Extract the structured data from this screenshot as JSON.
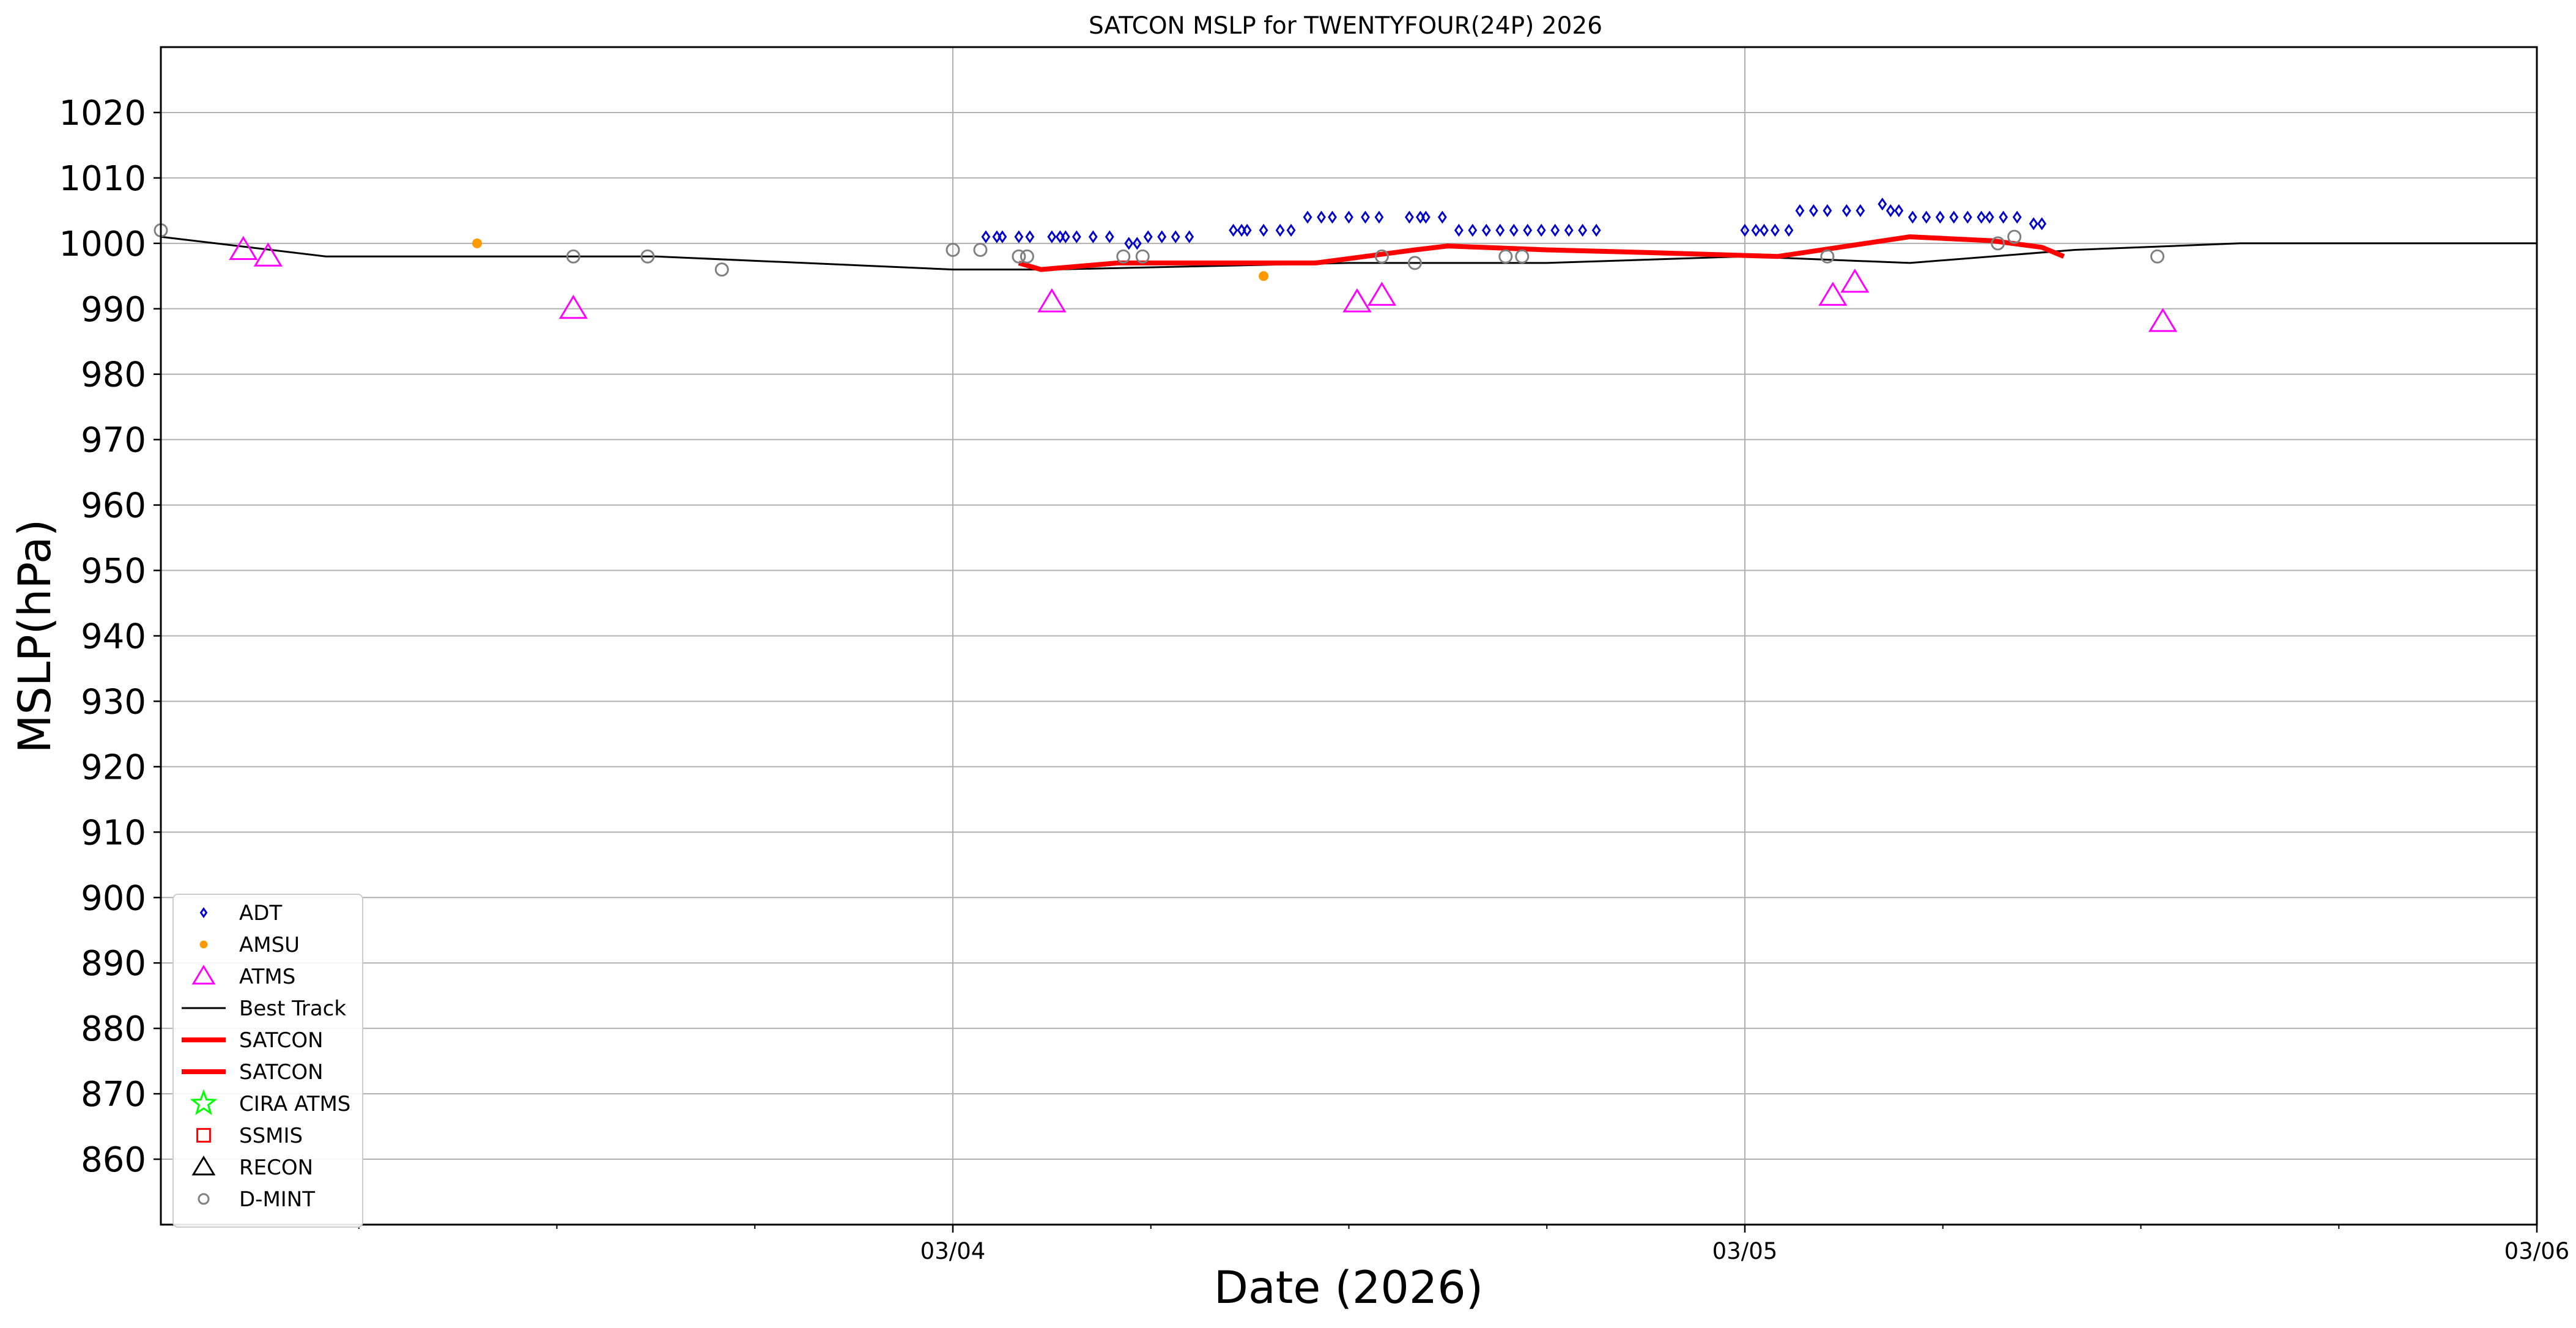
{
  "chart_data": {
    "type": "scatter",
    "title": "SATCON MSLP for TWENTYFOUR(24P) 2026",
    "xlabel": "Date (2026)",
    "ylabel": "MSLP(hPa)",
    "xlim": [
      "2026-03-03 00:00",
      "2026-03-06 00:00"
    ],
    "ylim": [
      850,
      1030
    ],
    "x_ticks": [
      "03/04",
      "03/05",
      "03/06"
    ],
    "y_ticks": [
      860,
      870,
      880,
      890,
      900,
      910,
      920,
      930,
      940,
      950,
      960,
      970,
      980,
      990,
      1000,
      1010,
      1020
    ],
    "grid": true,
    "legend_location": "lower left",
    "legend": [
      "ADT",
      "AMSU",
      "ATMS",
      "Best Track",
      "SATCON",
      "SATCON",
      "CIRA ATMS",
      "SSMIS",
      "RECON",
      "D-MINT"
    ],
    "series": [
      {
        "name": "ADT",
        "kind": "marker",
        "marker": "diamond",
        "color": "#0000cc",
        "points": [
          [
            "2026-03-04 01:00",
            1001
          ],
          [
            "2026-03-04 01:20",
            1001
          ],
          [
            "2026-03-04 01:30",
            1001
          ],
          [
            "2026-03-04 02:00",
            1001
          ],
          [
            "2026-03-04 02:20",
            1001
          ],
          [
            "2026-03-04 03:00",
            1001
          ],
          [
            "2026-03-04 03:15",
            1001
          ],
          [
            "2026-03-04 03:25",
            1001
          ],
          [
            "2026-03-04 03:45",
            1001
          ],
          [
            "2026-03-04 04:15",
            1001
          ],
          [
            "2026-03-04 04:45",
            1001
          ],
          [
            "2026-03-04 05:20",
            1000
          ],
          [
            "2026-03-04 05:35",
            1000
          ],
          [
            "2026-03-04 05:55",
            1001
          ],
          [
            "2026-03-04 06:20",
            1001
          ],
          [
            "2026-03-04 06:45",
            1001
          ],
          [
            "2026-03-04 07:10",
            1001
          ],
          [
            "2026-03-04 08:30",
            1002
          ],
          [
            "2026-03-04 08:45",
            1002
          ],
          [
            "2026-03-04 08:55",
            1002
          ],
          [
            "2026-03-04 09:25",
            1002
          ],
          [
            "2026-03-04 09:55",
            1002
          ],
          [
            "2026-03-04 10:15",
            1002
          ],
          [
            "2026-03-04 10:45",
            1004
          ],
          [
            "2026-03-04 11:10",
            1004
          ],
          [
            "2026-03-04 11:30",
            1004
          ],
          [
            "2026-03-04 12:00",
            1004
          ],
          [
            "2026-03-04 12:30",
            1004
          ],
          [
            "2026-03-04 12:55",
            1004
          ],
          [
            "2026-03-04 13:50",
            1004
          ],
          [
            "2026-03-04 14:10",
            1004
          ],
          [
            "2026-03-04 14:20",
            1004
          ],
          [
            "2026-03-04 14:50",
            1004
          ],
          [
            "2026-03-04 15:20",
            1002
          ],
          [
            "2026-03-04 15:45",
            1002
          ],
          [
            "2026-03-04 16:10",
            1002
          ],
          [
            "2026-03-04 16:35",
            1002
          ],
          [
            "2026-03-04 17:00",
            1002
          ],
          [
            "2026-03-04 17:25",
            1002
          ],
          [
            "2026-03-04 17:50",
            1002
          ],
          [
            "2026-03-04 18:15",
            1002
          ],
          [
            "2026-03-04 18:40",
            1002
          ],
          [
            "2026-03-04 19:05",
            1002
          ],
          [
            "2026-03-04 19:30",
            1002
          ],
          [
            "2026-03-05 00:00",
            1002
          ],
          [
            "2026-03-05 00:20",
            1002
          ],
          [
            "2026-03-05 00:35",
            1002
          ],
          [
            "2026-03-05 00:55",
            1002
          ],
          [
            "2026-03-05 01:20",
            1002
          ],
          [
            "2026-03-05 01:40",
            1005
          ],
          [
            "2026-03-05 02:05",
            1005
          ],
          [
            "2026-03-05 02:30",
            1005
          ],
          [
            "2026-03-05 03:05",
            1005
          ],
          [
            "2026-03-05 03:30",
            1005
          ],
          [
            "2026-03-05 04:10",
            1006
          ],
          [
            "2026-03-05 04:25",
            1005
          ],
          [
            "2026-03-05 04:40",
            1005
          ],
          [
            "2026-03-05 05:05",
            1004
          ],
          [
            "2026-03-05 05:30",
            1004
          ],
          [
            "2026-03-05 05:55",
            1004
          ],
          [
            "2026-03-05 06:20",
            1004
          ],
          [
            "2026-03-05 06:45",
            1004
          ],
          [
            "2026-03-05 07:10",
            1004
          ],
          [
            "2026-03-05 07:25",
            1004
          ],
          [
            "2026-03-05 07:50",
            1004
          ],
          [
            "2026-03-05 08:15",
            1004
          ],
          [
            "2026-03-05 08:45",
            1003
          ],
          [
            "2026-03-05 09:00",
            1003
          ]
        ]
      },
      {
        "name": "AMSU",
        "kind": "marker",
        "marker": "dot",
        "color": "#ff9900",
        "points": [
          [
            "2026-03-03 09:35",
            1000
          ],
          [
            "2026-03-04 09:25",
            995
          ]
        ]
      },
      {
        "name": "ATMS",
        "kind": "marker",
        "marker": "triangle",
        "color": "#ff00ff",
        "points": [
          [
            "2026-03-03 02:30",
            999
          ],
          [
            "2026-03-03 03:15",
            998
          ],
          [
            "2026-03-03 12:30",
            990
          ],
          [
            "2026-03-04 03:00",
            991
          ],
          [
            "2026-03-04 12:15",
            991
          ],
          [
            "2026-03-04 13:00",
            992
          ],
          [
            "2026-03-05 02:40",
            992
          ],
          [
            "2026-03-05 03:20",
            994
          ],
          [
            "2026-03-05 12:40",
            988
          ]
        ]
      },
      {
        "name": "Best Track",
        "kind": "line",
        "color": "#000000",
        "points": [
          [
            "2026-03-03 00:00",
            1001
          ],
          [
            "2026-03-03 05:00",
            998
          ],
          [
            "2026-03-03 15:00",
            998
          ],
          [
            "2026-03-04 00:00",
            996
          ],
          [
            "2026-03-04 03:00",
            996
          ],
          [
            "2026-03-04 12:00",
            997
          ],
          [
            "2026-03-04 18:00",
            997
          ],
          [
            "2026-03-05 00:00",
            998
          ],
          [
            "2026-03-05 05:00",
            997
          ],
          [
            "2026-03-05 10:00",
            999
          ],
          [
            "2026-03-05 15:00",
            1000
          ],
          [
            "2026-03-06 00:00",
            1000
          ]
        ]
      },
      {
        "name": "SATCON",
        "kind": "line",
        "color": "#ff0000",
        "points": [
          [
            "2026-03-04 02:00",
            997
          ],
          [
            "2026-03-04 02:40",
            996
          ],
          [
            "2026-03-04 05:00",
            997
          ],
          [
            "2026-03-04 08:00",
            997
          ],
          [
            "2026-03-04 11:00",
            997
          ],
          [
            "2026-03-04 12:30",
            998
          ],
          [
            "2026-03-04 14:00",
            999
          ],
          [
            "2026-03-04 15:00",
            999.6
          ],
          [
            "2026-03-04 18:00",
            999
          ],
          [
            "2026-03-04 21:00",
            998.6
          ],
          [
            "2026-03-05 01:00",
            998
          ],
          [
            "2026-03-05 03:40",
            1000
          ],
          [
            "2026-03-05 05:00",
            1001
          ],
          [
            "2026-03-05 07:30",
            1000.4
          ],
          [
            "2026-03-05 09:00",
            999.4
          ],
          [
            "2026-03-05 09:40",
            998
          ]
        ]
      },
      {
        "name": "SATCON",
        "kind": "line",
        "color": "#ff0000",
        "points": []
      },
      {
        "name": "CIRA ATMS",
        "kind": "marker",
        "marker": "star",
        "color": "#00ff00",
        "points": []
      },
      {
        "name": "SSMIS",
        "kind": "marker",
        "marker": "square",
        "color": "#ff0000",
        "points": []
      },
      {
        "name": "RECON",
        "kind": "marker",
        "marker": "triangle",
        "color": "#000000",
        "points": []
      },
      {
        "name": "D-MINT",
        "kind": "marker",
        "marker": "circle",
        "color": "#808080",
        "points": [
          [
            "2026-03-03 00:00",
            1002
          ],
          [
            "2026-03-03 12:30",
            998
          ],
          [
            "2026-03-03 14:45",
            998
          ],
          [
            "2026-03-03 17:00",
            996
          ],
          [
            "2026-03-04 00:00",
            999
          ],
          [
            "2026-03-04 00:50",
            999
          ],
          [
            "2026-03-04 02:00",
            998
          ],
          [
            "2026-03-04 02:15",
            998
          ],
          [
            "2026-03-04 05:10",
            998
          ],
          [
            "2026-03-04 05:45",
            998
          ],
          [
            "2026-03-04 13:00",
            998
          ],
          [
            "2026-03-04 14:00",
            997
          ],
          [
            "2026-03-04 16:45",
            998
          ],
          [
            "2026-03-04 17:15",
            998
          ],
          [
            "2026-03-05 02:30",
            998
          ],
          [
            "2026-03-05 07:40",
            1000
          ],
          [
            "2026-03-05 08:10",
            1001
          ],
          [
            "2026-03-05 12:30",
            998
          ]
        ]
      }
    ]
  }
}
